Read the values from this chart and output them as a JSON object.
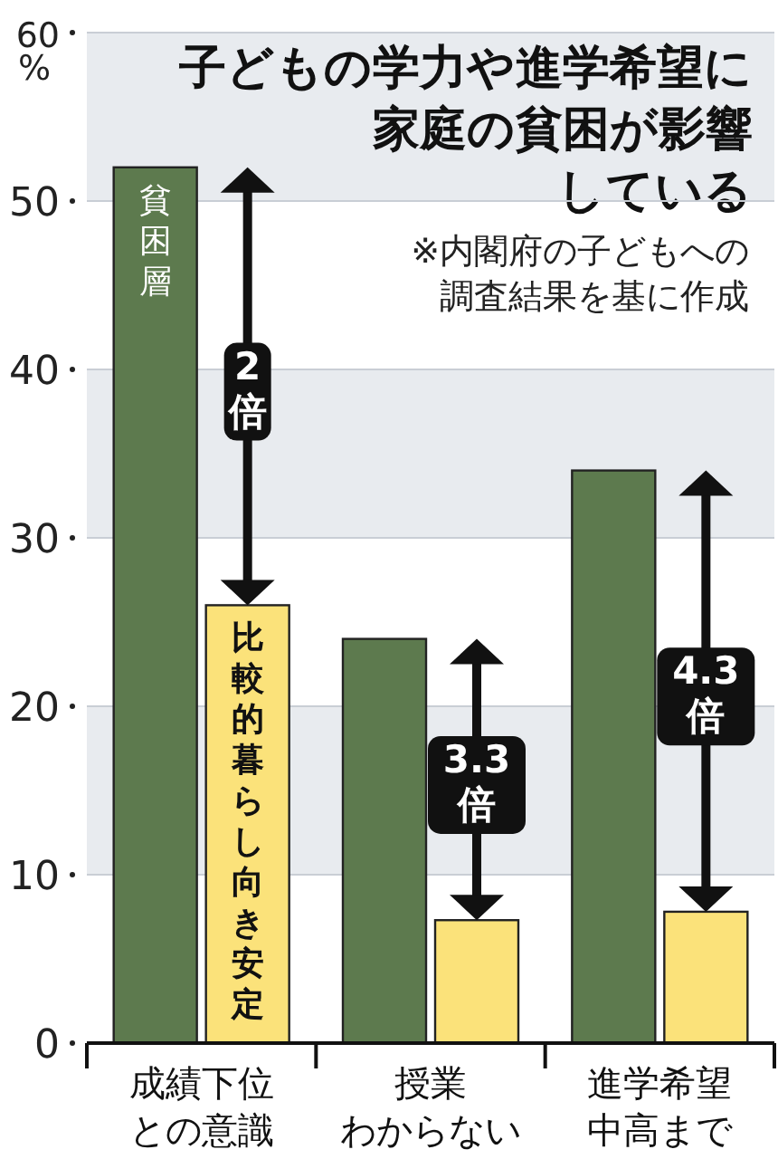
{
  "chart_data": {
    "type": "bar",
    "title": "子どもの学力や進学希望に家庭の貧困が影響している",
    "subtitle": "※内閣府の子どもへの調査結果を基に作成",
    "ylabel": "%",
    "categories": [
      "成績下位との意識",
      "授業わからない",
      "進学希望中高まで"
    ],
    "series": [
      {
        "name": "貧困層",
        "color": "#5d7a4e",
        "values": [
          52,
          24,
          34
        ]
      },
      {
        "name": "比較的暮らし向き安定",
        "color": "#fbe27a",
        "values": [
          26,
          7.3,
          7.8
        ]
      }
    ],
    "annotations": [
      "2倍",
      "3.3倍",
      "4.3倍"
    ],
    "ylim": [
      0,
      60
    ],
    "yticks": [
      0,
      10,
      20,
      30,
      40,
      50,
      60
    ],
    "grid": "y",
    "legend": false
  }
}
